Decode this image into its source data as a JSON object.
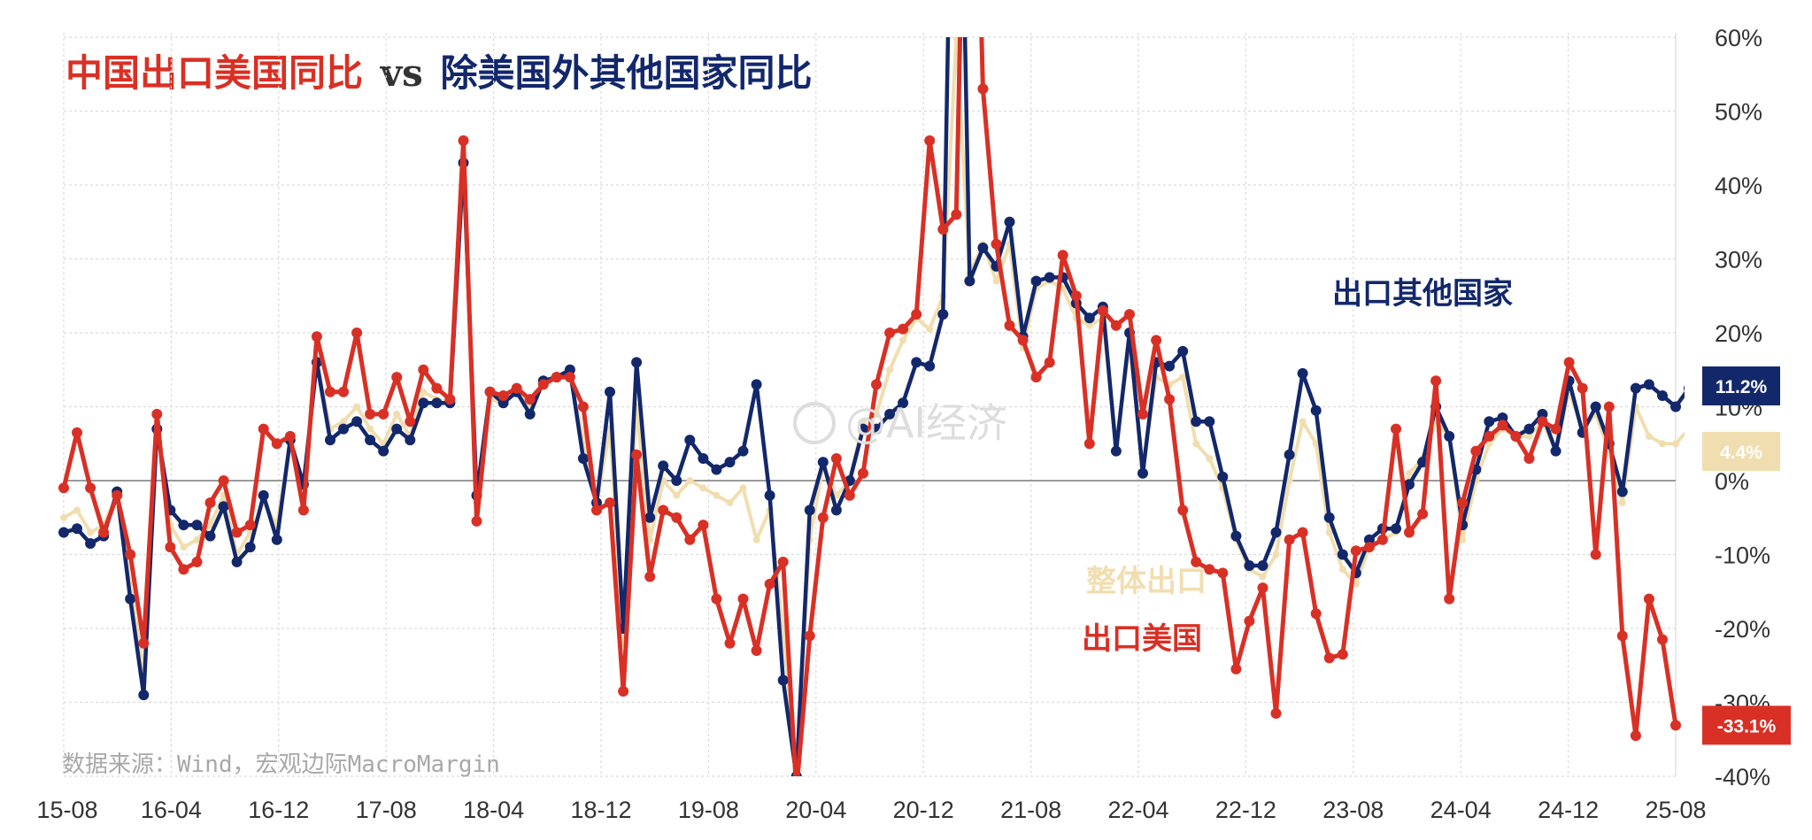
{
  "chart_data": {
    "type": "line",
    "title_parts": [
      {
        "text": "中国出口美国同比",
        "color": "#d93025"
      },
      {
        "text": " vs ",
        "color": "#333333"
      },
      {
        "text": "除美国外其他国家同比",
        "color": "#13286b"
      }
    ],
    "ylim": [
      -40,
      60
    ],
    "yticks": [
      -40,
      -30,
      -20,
      -10,
      0,
      10,
      20,
      30,
      40,
      50,
      60
    ],
    "ytick_labels": [
      "-40%",
      "-30%",
      "-20%",
      "-10%",
      "0%",
      "10%",
      "20%",
      "30%",
      "40%",
      "50%",
      "60%"
    ],
    "xtick_labels": [
      "15-08",
      "16-04",
      "16-12",
      "17-08",
      "18-04",
      "18-12",
      "19-08",
      "20-04",
      "20-12",
      "21-08",
      "22-04",
      "22-12",
      "23-08",
      "24-04",
      "24-12",
      "25-08"
    ],
    "grid": true,
    "colors": {
      "us": "#d93025",
      "other": "#13286b",
      "total": "#f1deb0"
    },
    "series": [
      {
        "name": "出口美国",
        "key": "us",
        "color": "#d93025",
        "values": [
          -1,
          6.5,
          -1,
          -7,
          -2,
          -10,
          -22,
          9,
          -9,
          -12,
          -11,
          -3,
          0,
          -7,
          -6,
          7,
          5,
          6,
          -4,
          19.5,
          12,
          12,
          20,
          9,
          9,
          14,
          8,
          15,
          12.5,
          11,
          46,
          -5.5,
          12,
          11.5,
          12.5,
          11,
          13,
          14,
          14,
          10,
          -4,
          -3,
          -28.5,
          3.5,
          -13,
          -4,
          -5,
          -8,
          -6,
          -16,
          -22,
          -16,
          -23,
          -14,
          -11,
          -42,
          -21,
          -5,
          3,
          -2,
          1,
          13,
          20,
          20.5,
          22.5,
          46,
          34,
          36,
          121,
          53,
          32,
          21,
          19,
          14,
          16,
          30.5,
          25,
          5,
          23,
          21,
          22.5,
          9,
          19,
          11,
          -4,
          -11,
          -12,
          -12.5,
          -25.5,
          -19,
          -14.5,
          -31.5,
          -8,
          -7,
          -18,
          -24,
          -23.5,
          -9.5,
          -9,
          -8,
          7,
          -7,
          -4.5,
          13.5,
          -16,
          -3,
          4,
          6,
          7.5,
          6,
          3,
          8,
          7,
          16,
          12.5,
          -10,
          10,
          -21,
          -34.5,
          -16,
          -21.5,
          -33.1
        ]
      },
      {
        "name": "出口其他国家",
        "key": "other",
        "color": "#13286b",
        "values": [
          -7,
          -6.5,
          -8.5,
          -7.5,
          -1.5,
          -16,
          -29,
          7,
          -4,
          -6,
          -6,
          -7.5,
          -3.5,
          -11,
          -9,
          -2,
          -8,
          5.5,
          -0.5,
          16,
          5.5,
          7,
          8,
          5.5,
          4,
          7,
          5.5,
          10.5,
          10.5,
          10.5,
          43,
          -2,
          12,
          10.5,
          12,
          9,
          13.5,
          14,
          15,
          3,
          -3,
          12,
          -20,
          16,
          -5,
          2,
          0,
          5.5,
          3,
          1.5,
          2.5,
          4,
          13,
          -2,
          -27,
          -40,
          -4,
          2.5,
          -4,
          0,
          7,
          7,
          9,
          10.5,
          16,
          15.5,
          22.5,
          122,
          27,
          31.5,
          29,
          35,
          19.5,
          27,
          27.5,
          27.5,
          24,
          22,
          23.5,
          4,
          20,
          1,
          16,
          15.5,
          17.5,
          8,
          8,
          0.5,
          -7.5,
          -11.5,
          -11.5,
          -7,
          3.5,
          14.5,
          9.5,
          -5,
          -10,
          -12.5,
          -8,
          -6.5,
          -6.5,
          -0.5,
          2.5,
          10,
          6,
          -6,
          1.5,
          8,
          8.5,
          6,
          7,
          9,
          4,
          13.5,
          6.5,
          10,
          5,
          -1.5,
          12.5,
          13,
          11.5,
          10,
          12.5,
          11.2
        ]
      },
      {
        "name": "整体出口",
        "key": "total",
        "color": "#f1deb0",
        "values": [
          -5,
          -4,
          -7,
          -6,
          -2,
          -14,
          -26,
          8,
          -6,
          -9,
          -8,
          -6,
          -2,
          -10,
          -7,
          -3,
          -6,
          5,
          -1,
          16.5,
          7,
          8,
          10,
          7,
          5,
          9,
          6,
          12,
          11,
          10.5,
          42,
          -3,
          11,
          10.5,
          12,
          10,
          13,
          14,
          14,
          6,
          -3,
          7,
          -22,
          10,
          -8,
          0,
          -2,
          0,
          -1,
          -2,
          -3,
          -1,
          -8,
          -4,
          -20,
          -40,
          -8,
          2,
          -2,
          0,
          8,
          9,
          15,
          19,
          22,
          20.5,
          25,
          60,
          28,
          32,
          27,
          32,
          18,
          26,
          27,
          26,
          22,
          21,
          22,
          5,
          18,
          2,
          14,
          13,
          14,
          5,
          3,
          -1,
          -8,
          -12,
          -13,
          -10,
          0,
          8,
          5,
          -7,
          -12,
          -14,
          -9,
          -8,
          -7,
          1,
          3,
          8,
          6,
          -8,
          0,
          5,
          7,
          6,
          6,
          8,
          4,
          12,
          7,
          9,
          4,
          -3,
          10,
          6,
          5,
          5,
          7,
          4.4
        ]
      }
    ],
    "annotations": {
      "other_label": "出口其他国家",
      "total_label": "整体出口",
      "us_label": "出口美国"
    },
    "end_badges": {
      "other": "11.2%",
      "total": "4.4%",
      "us": "-33.1%"
    },
    "source_note": "数据来源：Wind，宏观边际MacroMargin",
    "watermark": "@AI经济"
  }
}
